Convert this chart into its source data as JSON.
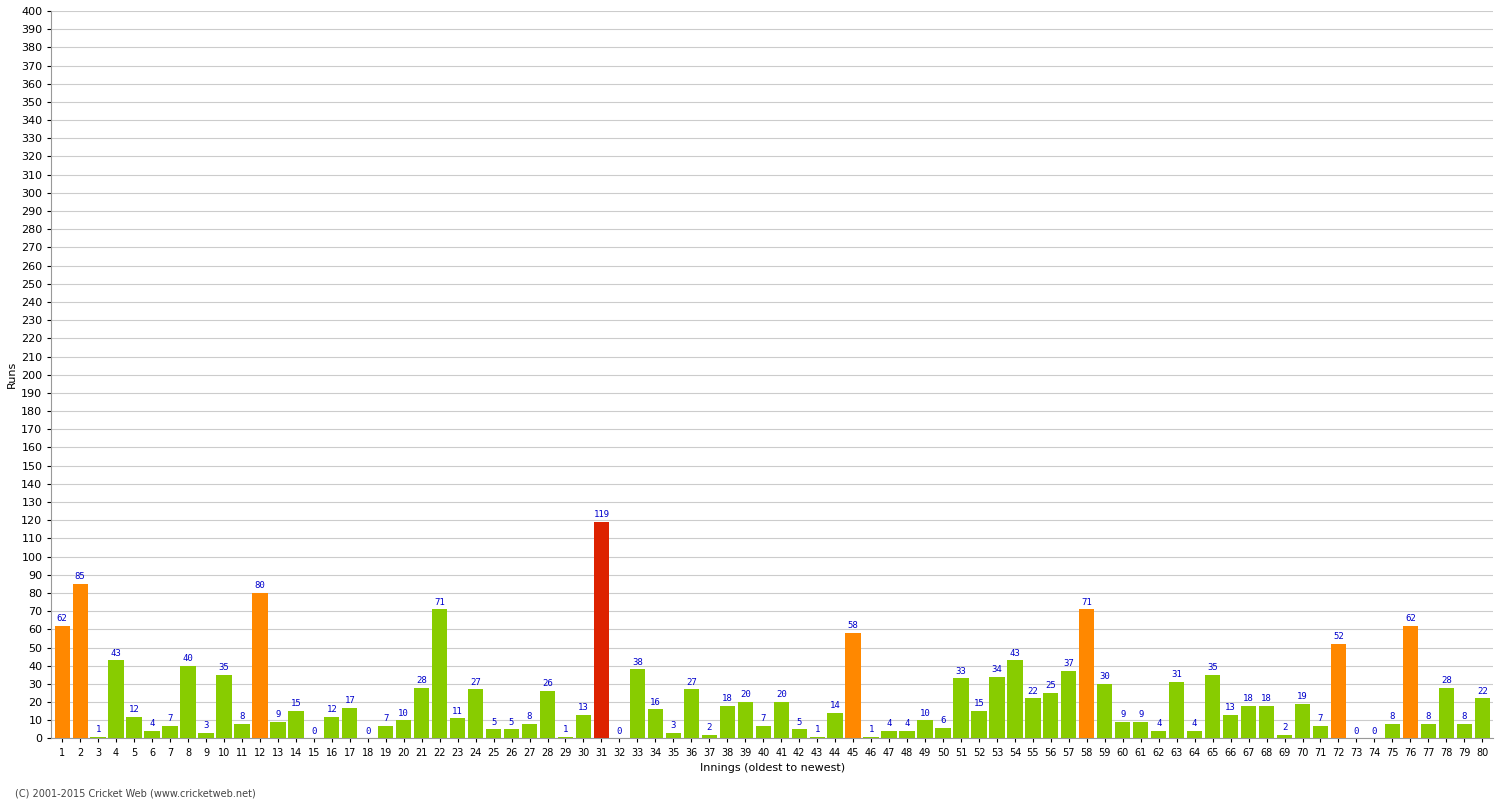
{
  "innings": [
    1,
    2,
    3,
    4,
    5,
    6,
    7,
    8,
    9,
    10,
    11,
    12,
    13,
    14,
    15,
    16,
    17,
    18,
    19,
    20,
    21,
    22,
    23,
    24,
    25,
    26,
    27,
    28,
    29,
    30,
    31,
    32,
    33,
    34,
    35,
    36,
    37,
    38,
    39,
    40,
    41,
    42,
    43,
    44,
    45,
    46,
    47,
    48,
    49,
    50,
    51,
    52,
    53,
    54,
    55,
    56,
    57,
    58,
    59,
    60,
    61,
    62,
    63,
    64,
    65,
    66,
    67,
    68,
    69,
    70,
    71,
    72,
    73,
    74,
    75,
    76,
    77,
    78,
    79,
    80
  ],
  "values": [
    62,
    85,
    1,
    43,
    12,
    4,
    7,
    40,
    3,
    35,
    8,
    80,
    9,
    15,
    0,
    12,
    17,
    0,
    7,
    10,
    28,
    71,
    11,
    27,
    5,
    5,
    8,
    26,
    1,
    13,
    119,
    0,
    38,
    16,
    3,
    27,
    2,
    18,
    20,
    7,
    20,
    5,
    1,
    14,
    58,
    1,
    4,
    4,
    10,
    6,
    33,
    15,
    34,
    43,
    22,
    25,
    37,
    71,
    30,
    9,
    9,
    4,
    31,
    4,
    35,
    13,
    18,
    18,
    2,
    19,
    7,
    52,
    0,
    0,
    8,
    62,
    8,
    28,
    8,
    22
  ],
  "colors": [
    "orange",
    "orange",
    "green",
    "green",
    "green",
    "green",
    "green",
    "green",
    "green",
    "green",
    "green",
    "orange",
    "green",
    "green",
    "green",
    "green",
    "green",
    "green",
    "green",
    "green",
    "green",
    "green",
    "green",
    "green",
    "green",
    "green",
    "green",
    "green",
    "green",
    "green",
    "red",
    "green",
    "green",
    "green",
    "green",
    "green",
    "green",
    "green",
    "green",
    "green",
    "green",
    "green",
    "green",
    "green",
    "orange",
    "green",
    "green",
    "green",
    "green",
    "green",
    "green",
    "green",
    "green",
    "green",
    "green",
    "green",
    "green",
    "orange",
    "green",
    "green",
    "green",
    "green",
    "green",
    "green",
    "green",
    "green",
    "green",
    "green",
    "green",
    "green",
    "green",
    "orange",
    "green",
    "green",
    "green",
    "orange",
    "green",
    "green",
    "green",
    "green"
  ],
  "xlabel": "Innings (oldest to newest)",
  "ylabel": "Runs",
  "ylim": [
    0,
    400
  ],
  "yticks": [
    0,
    10,
    20,
    30,
    40,
    50,
    60,
    70,
    80,
    90,
    100,
    110,
    120,
    130,
    140,
    150,
    160,
    170,
    180,
    190,
    200,
    210,
    220,
    230,
    240,
    250,
    260,
    270,
    280,
    290,
    300,
    310,
    320,
    330,
    340,
    350,
    360,
    370,
    380,
    390,
    400
  ],
  "bg_color": "#ffffff",
  "grid_color": "#cccccc",
  "bar_width": 0.85,
  "label_color": "#0000cc",
  "label_fontsize": 6.5,
  "axis_fontsize": 8,
  "footer": "(C) 2001-2015 Cricket Web (www.cricketweb.net)"
}
